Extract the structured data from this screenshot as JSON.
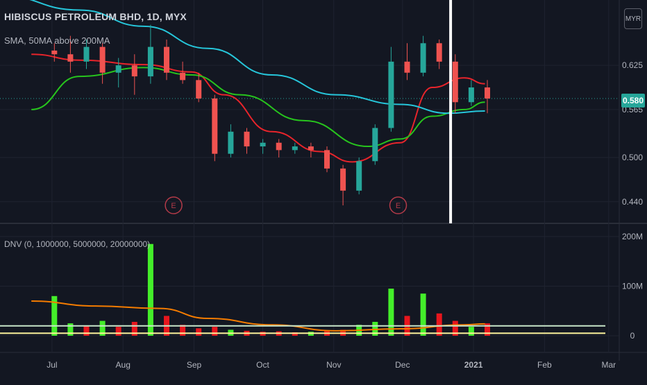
{
  "header": {
    "title": "HIBISCUS PETROLEUM BHD, 1D, MYX",
    "study_ma": "SMA, 50MA above 200MA",
    "study_dnv": "DNV (0, 1000000, 5000000, 20000000)",
    "currency": "MYR",
    "last_price": "0.580"
  },
  "events": [
    {
      "label": "E"
    },
    {
      "label": "E"
    }
  ],
  "colors": {
    "background": "#131722",
    "grid": "#1f2330",
    "up": "#26a69a",
    "down": "#ef5350",
    "ma_fast": "#e8242b",
    "ma_mid": "#27c41d",
    "ma_slow": "#26c6da",
    "vol_up": "#44ee2a",
    "vol_down": "#e8161d",
    "vol_ma": "#f57c00",
    "vol_level_1": "#c8e6c9",
    "vol_level_2": "#fff59d",
    "event": "#b23a48",
    "marker": "#ffffff"
  },
  "chart_data": [
    {
      "type": "candlestick",
      "x_axis": {
        "ticks": [
          "Jul",
          "Aug",
          "Sep",
          "Oct",
          "Nov",
          "Dec",
          "2021",
          "Feb",
          "Mar"
        ]
      },
      "y_axis": {
        "ticks": [
          "0.625",
          "0.565",
          "0.500",
          "0.440"
        ],
        "range": [
          0.425,
          0.705
        ]
      },
      "candles": [
        {
          "t": "2020-06-29",
          "o": 0.645,
          "h": 0.655,
          "l": 0.63,
          "c": 0.64
        },
        {
          "t": "2020-07-06",
          "o": 0.64,
          "h": 0.665,
          "l": 0.615,
          "c": 0.63
        },
        {
          "t": "2020-07-13",
          "o": 0.63,
          "h": 0.66,
          "l": 0.62,
          "c": 0.65
        },
        {
          "t": "2020-07-20",
          "o": 0.65,
          "h": 0.655,
          "l": 0.6,
          "c": 0.615
        },
        {
          "t": "2020-07-27",
          "o": 0.615,
          "h": 0.635,
          "l": 0.595,
          "c": 0.625
        },
        {
          "t": "2020-08-03",
          "o": 0.625,
          "h": 0.64,
          "l": 0.585,
          "c": 0.61
        },
        {
          "t": "2020-08-10",
          "o": 0.61,
          "h": 0.68,
          "l": 0.6,
          "c": 0.65
        },
        {
          "t": "2020-08-17",
          "o": 0.65,
          "h": 0.66,
          "l": 0.605,
          "c": 0.615
        },
        {
          "t": "2020-08-24",
          "o": 0.615,
          "h": 0.63,
          "l": 0.6,
          "c": 0.605
        },
        {
          "t": "2020-08-31",
          "o": 0.605,
          "h": 0.615,
          "l": 0.575,
          "c": 0.58
        },
        {
          "t": "2020-09-07",
          "o": 0.58,
          "h": 0.585,
          "l": 0.495,
          "c": 0.505
        },
        {
          "t": "2020-09-14",
          "o": 0.505,
          "h": 0.545,
          "l": 0.5,
          "c": 0.535
        },
        {
          "t": "2020-09-21",
          "o": 0.535,
          "h": 0.54,
          "l": 0.505,
          "c": 0.515
        },
        {
          "t": "2020-09-28",
          "o": 0.515,
          "h": 0.525,
          "l": 0.505,
          "c": 0.52
        },
        {
          "t": "2020-10-05",
          "o": 0.52,
          "h": 0.525,
          "l": 0.5,
          "c": 0.51
        },
        {
          "t": "2020-10-12",
          "o": 0.51,
          "h": 0.52,
          "l": 0.505,
          "c": 0.515
        },
        {
          "t": "2020-10-19",
          "o": 0.515,
          "h": 0.52,
          "l": 0.5,
          "c": 0.51
        },
        {
          "t": "2020-10-26",
          "o": 0.51,
          "h": 0.515,
          "l": 0.48,
          "c": 0.485
        },
        {
          "t": "2020-11-02",
          "o": 0.485,
          "h": 0.49,
          "l": 0.435,
          "c": 0.455
        },
        {
          "t": "2020-11-09",
          "o": 0.455,
          "h": 0.5,
          "l": 0.45,
          "c": 0.495
        },
        {
          "t": "2020-11-16",
          "o": 0.495,
          "h": 0.545,
          "l": 0.49,
          "c": 0.54
        },
        {
          "t": "2020-11-23",
          "o": 0.54,
          "h": 0.65,
          "l": 0.535,
          "c": 0.63
        },
        {
          "t": "2020-11-30",
          "o": 0.63,
          "h": 0.655,
          "l": 0.605,
          "c": 0.615
        },
        {
          "t": "2020-12-07",
          "o": 0.615,
          "h": 0.665,
          "l": 0.61,
          "c": 0.655
        },
        {
          "t": "2020-12-14",
          "o": 0.655,
          "h": 0.66,
          "l": 0.62,
          "c": 0.63
        },
        {
          "t": "2020-12-21",
          "o": 0.63,
          "h": 0.64,
          "l": 0.56,
          "c": 0.575
        },
        {
          "t": "2020-12-28",
          "o": 0.575,
          "h": 0.605,
          "l": 0.57,
          "c": 0.595
        },
        {
          "t": "2021-01-04",
          "o": 0.595,
          "h": 0.605,
          "l": 0.56,
          "c": 0.58
        }
      ],
      "series": [
        {
          "name": "SMA",
          "color_key": "ma_fast",
          "values": [
            {
              "t": "2020-06-22",
              "v": 0.64
            },
            {
              "t": "2020-07-13",
              "v": 0.632
            },
            {
              "t": "2020-08-10",
              "v": 0.626
            },
            {
              "t": "2020-08-31",
              "v": 0.616
            },
            {
              "t": "2020-09-14",
              "v": 0.585
            },
            {
              "t": "2020-10-05",
              "v": 0.535
            },
            {
              "t": "2020-10-26",
              "v": 0.508
            },
            {
              "t": "2020-11-09",
              "v": 0.494
            },
            {
              "t": "2020-11-30",
              "v": 0.52
            },
            {
              "t": "2020-12-14",
              "v": 0.595
            },
            {
              "t": "2020-12-28",
              "v": 0.608
            },
            {
              "t": "2021-01-06",
              "v": 0.6
            }
          ]
        },
        {
          "name": "50MA",
          "color_key": "ma_mid",
          "values": [
            {
              "t": "2020-06-22",
              "v": 0.565
            },
            {
              "t": "2020-07-13",
              "v": 0.61
            },
            {
              "t": "2020-08-10",
              "v": 0.622
            },
            {
              "t": "2020-08-31",
              "v": 0.612
            },
            {
              "t": "2020-09-21",
              "v": 0.585
            },
            {
              "t": "2020-10-19",
              "v": 0.55
            },
            {
              "t": "2020-11-16",
              "v": 0.515
            },
            {
              "t": "2020-11-30",
              "v": 0.525
            },
            {
              "t": "2020-12-14",
              "v": 0.556
            },
            {
              "t": "2020-12-28",
              "v": 0.565
            },
            {
              "t": "2021-01-06",
              "v": 0.575
            }
          ]
        },
        {
          "name": "200MA",
          "color_key": "ma_slow",
          "values": [
            {
              "t": "2020-06-08",
              "v": 0.72
            },
            {
              "t": "2020-07-13",
              "v": 0.7
            },
            {
              "t": "2020-08-10",
              "v": 0.678
            },
            {
              "t": "2020-09-07",
              "v": 0.648
            },
            {
              "t": "2020-10-05",
              "v": 0.612
            },
            {
              "t": "2020-11-02",
              "v": 0.585
            },
            {
              "t": "2020-11-30",
              "v": 0.572
            },
            {
              "t": "2020-12-21",
              "v": 0.56
            },
            {
              "t": "2021-01-06",
              "v": 0.563
            }
          ]
        }
      ],
      "earnings_events": [
        "2020-08-24",
        "2020-11-30"
      ],
      "vertical_marker": "2020-12-22"
    },
    {
      "type": "bar",
      "y_axis": {
        "ticks": [
          "200M",
          "100M",
          "0"
        ],
        "range": [
          0,
          200
        ]
      },
      "unit": "M",
      "volume_bars": [
        {
          "t": "2020-06-29",
          "v": 80,
          "up": true
        },
        {
          "t": "2020-07-06",
          "v": 25,
          "up": true
        },
        {
          "t": "2020-07-13",
          "v": 20,
          "up": false
        },
        {
          "t": "2020-07-20",
          "v": 30,
          "up": true
        },
        {
          "t": "2020-07-27",
          "v": 18,
          "up": false
        },
        {
          "t": "2020-08-03",
          "v": 28,
          "up": false
        },
        {
          "t": "2020-08-10",
          "v": 185,
          "up": true
        },
        {
          "t": "2020-08-17",
          "v": 40,
          "up": false
        },
        {
          "t": "2020-08-24",
          "v": 22,
          "up": false
        },
        {
          "t": "2020-08-31",
          "v": 15,
          "up": false
        },
        {
          "t": "2020-09-07",
          "v": 18,
          "up": false
        },
        {
          "t": "2020-09-14",
          "v": 12,
          "up": true
        },
        {
          "t": "2020-09-21",
          "v": 10,
          "up": false
        },
        {
          "t": "2020-09-28",
          "v": 8,
          "up": false
        },
        {
          "t": "2020-10-05",
          "v": 9,
          "up": false
        },
        {
          "t": "2020-10-12",
          "v": 7,
          "up": false
        },
        {
          "t": "2020-10-19",
          "v": 8,
          "up": true
        },
        {
          "t": "2020-10-26",
          "v": 10,
          "up": false
        },
        {
          "t": "2020-11-02",
          "v": 12,
          "up": false
        },
        {
          "t": "2020-11-09",
          "v": 22,
          "up": true
        },
        {
          "t": "2020-11-16",
          "v": 28,
          "up": true
        },
        {
          "t": "2020-11-23",
          "v": 95,
          "up": true
        },
        {
          "t": "2020-11-30",
          "v": 40,
          "up": false
        },
        {
          "t": "2020-12-07",
          "v": 85,
          "up": true
        },
        {
          "t": "2020-12-14",
          "v": 45,
          "up": false
        },
        {
          "t": "2020-12-21",
          "v": 30,
          "up": false
        },
        {
          "t": "2020-12-28",
          "v": 18,
          "up": true
        },
        {
          "t": "2021-01-04",
          "v": 25,
          "up": false
        }
      ],
      "series": [
        {
          "name": "volume MA",
          "color_key": "vol_ma",
          "values": [
            {
              "t": "2020-06-22",
              "v": 70
            },
            {
              "t": "2020-07-20",
              "v": 60
            },
            {
              "t": "2020-08-17",
              "v": 55
            },
            {
              "t": "2020-09-07",
              "v": 35
            },
            {
              "t": "2020-10-05",
              "v": 22
            },
            {
              "t": "2020-11-02",
              "v": 10
            },
            {
              "t": "2020-11-30",
              "v": 14
            },
            {
              "t": "2020-12-28",
              "v": 22
            },
            {
              "t": "2021-01-06",
              "v": 24
            }
          ]
        }
      ],
      "levels": [
        {
          "v": 20,
          "color_key": "vol_level_1"
        },
        {
          "v": 5,
          "color_key": "vol_level_2"
        }
      ]
    }
  ]
}
